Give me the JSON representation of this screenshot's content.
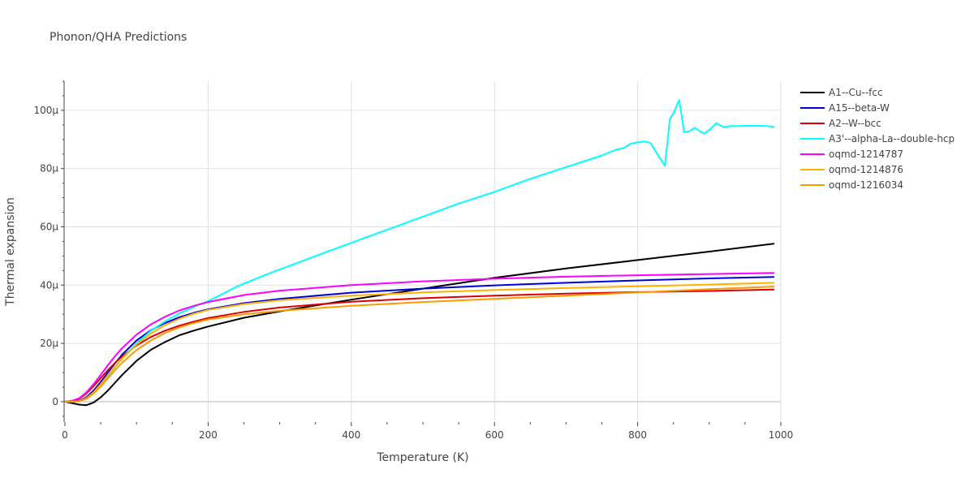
{
  "chart_data": {
    "type": "line",
    "title": "Phonon/QHA Predictions",
    "xlabel": "Temperature (K)",
    "ylabel": "Thermal expansion",
    "xlim": [
      0,
      1000
    ],
    "ylim": [
      -7,
      110
    ],
    "y_unit_suffix": "μ",
    "x_ticks": [
      0,
      200,
      400,
      600,
      800,
      1000
    ],
    "x_tick_labels": [
      "0",
      "200",
      "400",
      "600",
      "800",
      "1000"
    ],
    "y_ticks": [
      0,
      20,
      40,
      60,
      80,
      100
    ],
    "y_tick_labels": [
      "0",
      "20μ",
      "40μ",
      "60μ",
      "80μ",
      "100μ"
    ],
    "legend_position": "right",
    "series": [
      {
        "name": "A1--Cu--fcc",
        "color": "#000000",
        "x": [
          0,
          10,
          20,
          30,
          40,
          50,
          60,
          70,
          80,
          100,
          120,
          140,
          160,
          180,
          200,
          250,
          300,
          400,
          500,
          600,
          700,
          800,
          900,
          990
        ],
        "values": [
          0,
          -0.5,
          -1,
          -1.2,
          -0.3,
          1.5,
          3.8,
          6.5,
          9.2,
          14.0,
          17.8,
          20.5,
          22.8,
          24.4,
          25.8,
          28.8,
          31.0,
          35.0,
          38.8,
          42.5,
          45.7,
          48.6,
          51.5,
          54.2
        ]
      },
      {
        "name": "A15--beta-W",
        "color": "#0000dd",
        "x": [
          0,
          10,
          20,
          30,
          40,
          50,
          60,
          70,
          80,
          100,
          120,
          140,
          160,
          180,
          200,
          250,
          300,
          400,
          500,
          600,
          700,
          800,
          900,
          990
        ],
        "values": [
          0,
          0,
          0.3,
          1.5,
          3.8,
          6.8,
          10.0,
          13.2,
          16.2,
          21.0,
          24.5,
          27.0,
          29.0,
          30.5,
          31.7,
          33.8,
          35.3,
          37.4,
          38.8,
          39.9,
          40.8,
          41.6,
          42.3,
          42.8
        ]
      },
      {
        "name": "A2--W--bcc",
        "color": "#dd0000",
        "x": [
          0,
          10,
          20,
          30,
          40,
          50,
          60,
          70,
          80,
          100,
          120,
          140,
          160,
          180,
          200,
          250,
          300,
          400,
          500,
          600,
          700,
          800,
          900,
          990
        ],
        "values": [
          0,
          0.2,
          1.0,
          2.8,
          5.3,
          8.1,
          10.8,
          13.3,
          15.6,
          19.3,
          22.2,
          24.4,
          26.1,
          27.5,
          28.7,
          30.8,
          32.3,
          34.3,
          35.5,
          36.4,
          37.1,
          37.6,
          38.0,
          38.5
        ]
      },
      {
        "name": "A3'--alpha-La--double-hcp",
        "color": "#00ffff",
        "x": [
          0,
          10,
          20,
          30,
          40,
          50,
          60,
          70,
          80,
          100,
          120,
          140,
          160,
          180,
          200,
          240,
          280,
          350,
          400,
          450,
          500,
          550,
          600,
          650,
          700,
          750,
          770,
          780,
          790,
          800,
          810,
          818,
          825,
          830,
          838,
          845,
          850,
          858,
          865,
          872,
          880,
          887,
          893,
          900,
          910,
          920,
          930,
          940,
          960,
          980,
          990
        ],
        "values": [
          0,
          0,
          0.2,
          1.0,
          3.0,
          5.7,
          8.7,
          11.8,
          14.8,
          20.0,
          24.3,
          27.6,
          30.3,
          32.5,
          34.5,
          39.5,
          43.5,
          50.0,
          54.5,
          59.0,
          63.5,
          68.0,
          72.0,
          76.5,
          80.5,
          84.5,
          86.5,
          87.0,
          88.5,
          89.0,
          89.3,
          88.8,
          86.0,
          84.0,
          81.0,
          97.0,
          99.0,
          103.5,
          92.5,
          92.8,
          94.0,
          92.8,
          92.0,
          93.2,
          95.6,
          94.2,
          94.6,
          94.6,
          94.7,
          94.6,
          94.4
        ]
      },
      {
        "name": "oqmd-1214787",
        "color": "#ff00ff",
        "x": [
          0,
          10,
          20,
          30,
          40,
          50,
          60,
          70,
          80,
          100,
          120,
          140,
          160,
          180,
          200,
          250,
          300,
          400,
          500,
          600,
          700,
          800,
          900,
          990
        ],
        "values": [
          0,
          0.3,
          1.2,
          3.2,
          6.0,
          9.2,
          12.5,
          15.6,
          18.4,
          23.0,
          26.5,
          29.2,
          31.3,
          32.9,
          34.2,
          36.6,
          38.1,
          40.0,
          41.3,
          42.2,
          42.9,
          43.4,
          43.8,
          44.2
        ]
      },
      {
        "name": "oqmd-1214876",
        "color": "#ffb000",
        "x": [
          0,
          10,
          20,
          30,
          40,
          50,
          60,
          70,
          80,
          100,
          120,
          140,
          160,
          180,
          200,
          250,
          300,
          400,
          500,
          600,
          700,
          800,
          900,
          990
        ],
        "values": [
          0,
          0,
          0.2,
          1.2,
          3.2,
          6.0,
          9.0,
          12.0,
          14.8,
          19.6,
          23.4,
          26.3,
          28.5,
          30.2,
          31.5,
          33.5,
          34.8,
          36.4,
          37.5,
          38.3,
          39.0,
          39.6,
          40.2,
          40.8
        ]
      },
      {
        "name": "oqmd-1216034",
        "color": "#ff9900",
        "x": [
          0,
          10,
          20,
          30,
          40,
          50,
          60,
          70,
          80,
          100,
          120,
          140,
          160,
          180,
          200,
          250,
          300,
          400,
          500,
          600,
          700,
          800,
          900,
          990
        ],
        "values": [
          0,
          0,
          0.2,
          1.0,
          2.8,
          5.2,
          8.0,
          10.8,
          13.4,
          17.7,
          21.0,
          23.6,
          25.5,
          27.0,
          28.2,
          30.0,
          31.2,
          32.9,
          34.2,
          35.3,
          36.4,
          37.5,
          38.6,
          39.5
        ]
      }
    ]
  }
}
